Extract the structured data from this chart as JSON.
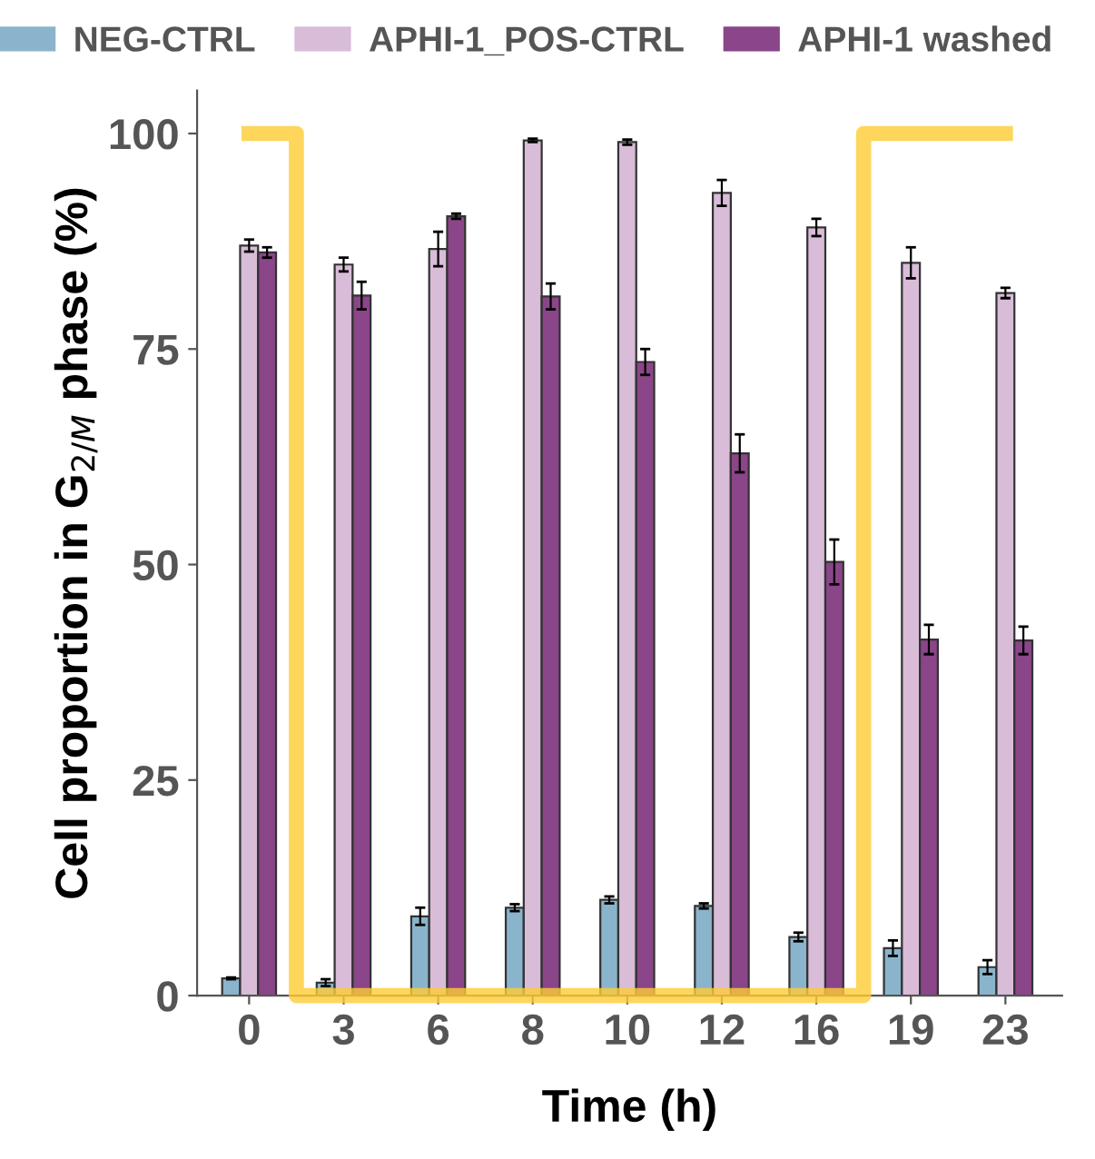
{
  "chart_data": {
    "type": "bar",
    "xlabel": "Time (h)",
    "ylabel": "Cell proportion in G$_{2/M}$ phase (%)",
    "categories": [
      "0",
      "3",
      "6",
      "8",
      "10",
      "12",
      "16",
      "19",
      "23"
    ],
    "ylim": [
      0,
      105
    ],
    "yticks": [
      0,
      25,
      50,
      75,
      100
    ],
    "grid": false,
    "legend": "top",
    "series": [
      {
        "name": "NEG-CTRL",
        "color": "#8ab4cc",
        "values": [
          2,
          1.5,
          9.2,
          10.2,
          11.1,
          10.4,
          6.8,
          5.5,
          3.3
        ],
        "errors": [
          0.1,
          0.4,
          1,
          0.4,
          0.4,
          0.3,
          0.5,
          0.9,
          0.8
        ]
      },
      {
        "name": "APHI-1_POS-CTRL",
        "color": "#d8bcd8",
        "values": [
          87,
          84.8,
          86.6,
          99.2,
          99,
          93.1,
          89.1,
          85,
          81.5
        ],
        "errors": [
          0.7,
          0.8,
          2,
          0.2,
          0.3,
          1.5,
          1,
          1.8,
          0.6
        ]
      },
      {
        "name": "APHI-1 washed",
        "color": "#8b4589",
        "values": [
          86.2,
          81.2,
          90.4,
          81.1,
          73.5,
          62.9,
          50.3,
          41.3,
          41.2
        ],
        "errors": [
          0.6,
          1.6,
          0.3,
          1.5,
          1.5,
          2.2,
          2.6,
          1.7,
          1.6
        ]
      },
      {
        "type": "step",
        "color": "#ffcc33",
        "values": [
          100,
          0,
          0,
          0,
          0,
          0,
          0,
          100,
          100
        ]
      }
    ]
  }
}
